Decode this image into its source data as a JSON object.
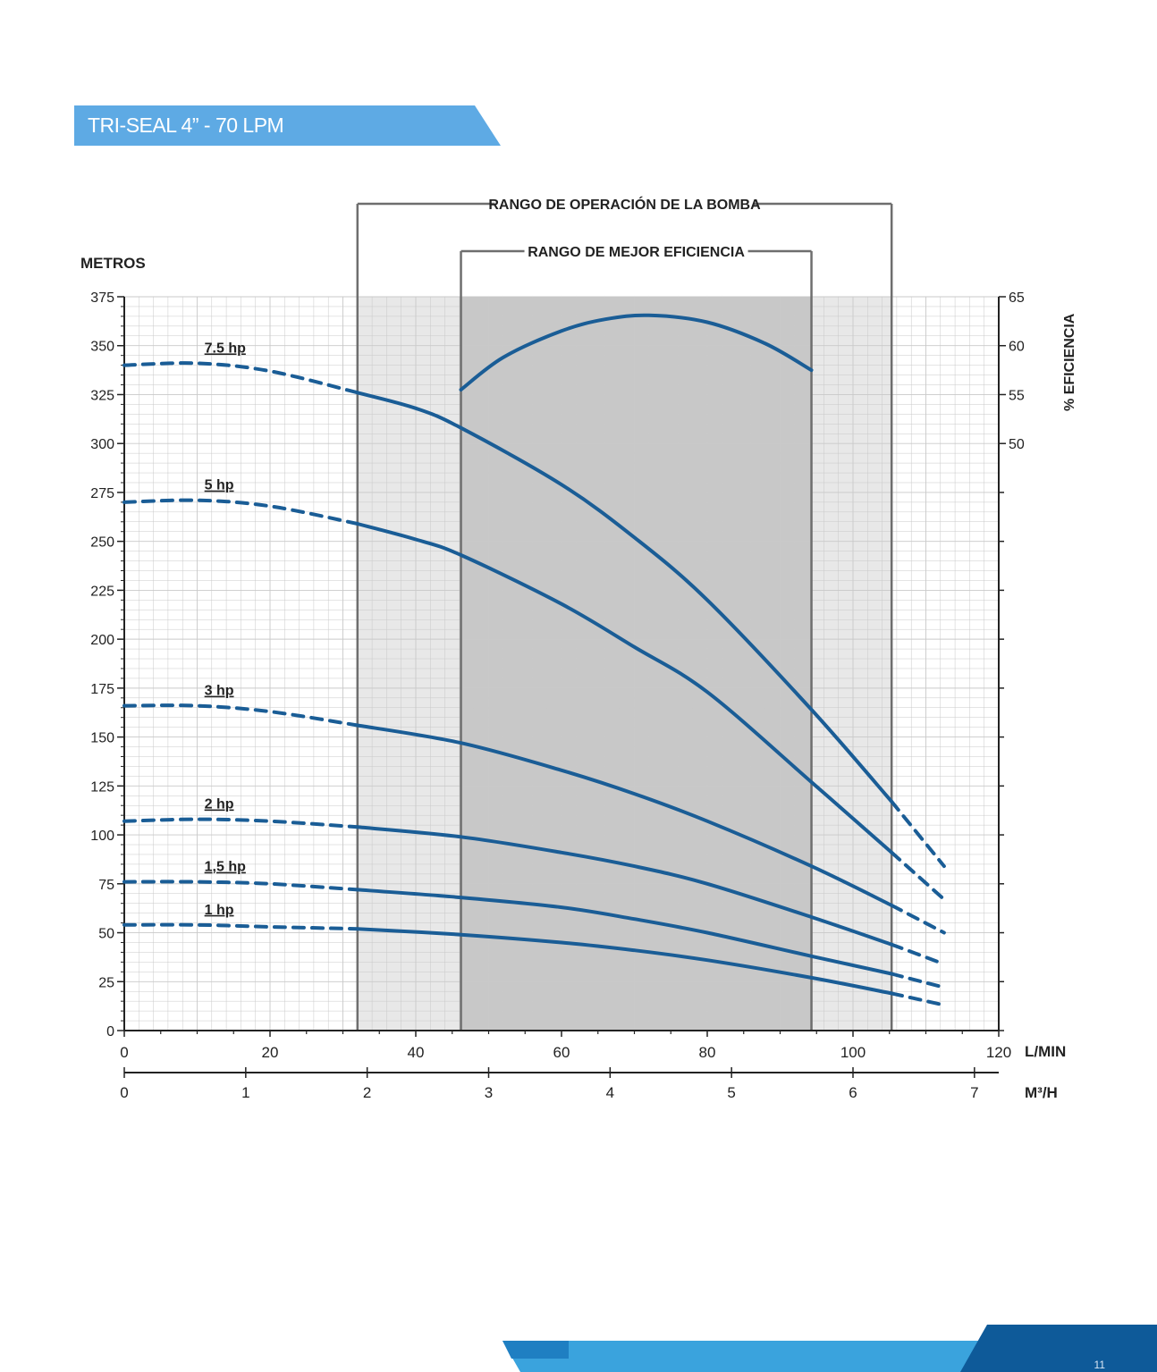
{
  "header": {
    "title": "TRI-SEAL 4” - 70 LPM",
    "accent_color": "#5eaae4"
  },
  "footer": {
    "page_number": "11",
    "color_dark": "#0e5a99",
    "color_light": "#3aa3dd"
  },
  "chart_data": {
    "type": "line",
    "title": "",
    "ylabel": "METROS",
    "y2label": "% EFICIENCIA",
    "xlabel": "L/MIN",
    "x2label": "M³/H",
    "xlim": [
      0,
      120
    ],
    "ylim": [
      0,
      375
    ],
    "yticks": [
      "0",
      "25",
      "50",
      "75",
      "100",
      "125",
      "150",
      "175",
      "200",
      "225",
      "250",
      "275",
      "300",
      "325",
      "350",
      "375"
    ],
    "xticks": [
      "0",
      "20",
      "40",
      "60",
      "80",
      "100",
      "120"
    ],
    "x2lim": [
      0,
      7.2
    ],
    "x2ticks": [
      "0",
      "1",
      "2",
      "3",
      "4",
      "5",
      "6",
      "7"
    ],
    "y2lim": [
      50,
      65
    ],
    "y2ticks": [
      "50",
      "55",
      "60",
      "65"
    ],
    "grid": true,
    "line_color": "#1a5d96",
    "ranges": [
      {
        "label": "RANGO DE OPERACIÓN DE LA BOMBA",
        "x_start": 32,
        "x_end": 105.3,
        "fill": "#e8e8e8"
      },
      {
        "label": "RANGO DE MEJOR EFICIENCIA",
        "x_start": 46.2,
        "x_end": 94.3,
        "fill": "#c8c8c8"
      }
    ],
    "series": [
      {
        "name": "7.5 hp",
        "label_x": 11,
        "dashed": [
          [
            0,
            340
          ],
          [
            10,
            341
          ],
          [
            20,
            337
          ],
          [
            32,
            326
          ]
        ],
        "solid": [
          [
            32,
            326
          ],
          [
            40,
            318
          ],
          [
            46.2,
            308
          ],
          [
            60,
            279
          ],
          [
            70,
            252
          ],
          [
            80,
            220
          ],
          [
            94.3,
            164
          ],
          [
            105.3,
            117
          ]
        ],
        "tail": [
          [
            105.3,
            117
          ],
          [
            112.5,
            84
          ]
        ]
      },
      {
        "name": "5 hp",
        "label_x": 11,
        "dashed": [
          [
            0,
            270
          ],
          [
            10,
            271
          ],
          [
            20,
            268
          ],
          [
            32,
            259
          ]
        ],
        "solid": [
          [
            32,
            259
          ],
          [
            40,
            251
          ],
          [
            46.2,
            243
          ],
          [
            60,
            218
          ],
          [
            70,
            196
          ],
          [
            80,
            173
          ],
          [
            94.3,
            127
          ],
          [
            105.3,
            91
          ]
        ],
        "tail": [
          [
            105.3,
            91
          ],
          [
            112.5,
            67
          ]
        ]
      },
      {
        "name": "3 hp",
        "label_x": 11,
        "dashed": [
          [
            0,
            166
          ],
          [
            10,
            166
          ],
          [
            20,
            163
          ],
          [
            32,
            156
          ]
        ],
        "solid": [
          [
            32,
            156
          ],
          [
            46.2,
            147
          ],
          [
            60,
            133
          ],
          [
            70,
            121
          ],
          [
            80,
            107
          ],
          [
            94.3,
            84
          ],
          [
            105.3,
            64
          ]
        ],
        "tail": [
          [
            105.3,
            64
          ],
          [
            112.5,
            50
          ]
        ]
      },
      {
        "name": "2 hp",
        "label_x": 11,
        "dashed": [
          [
            0,
            107
          ],
          [
            10,
            108
          ],
          [
            20,
            107
          ],
          [
            32,
            104
          ]
        ],
        "solid": [
          [
            32,
            104
          ],
          [
            46.2,
            99
          ],
          [
            60,
            91
          ],
          [
            70,
            84
          ],
          [
            80,
            75
          ],
          [
            94.3,
            58
          ],
          [
            105.3,
            44
          ]
        ],
        "tail": [
          [
            105.3,
            44
          ],
          [
            112.5,
            34
          ]
        ]
      },
      {
        "name": "1,5 hp",
        "label_x": 11,
        "dashed": [
          [
            0,
            76
          ],
          [
            10,
            76
          ],
          [
            20,
            75
          ],
          [
            32,
            72
          ]
        ],
        "solid": [
          [
            32,
            72
          ],
          [
            46.2,
            68
          ],
          [
            60,
            63
          ],
          [
            70,
            57
          ],
          [
            80,
            50
          ],
          [
            94.3,
            38
          ],
          [
            105.3,
            29
          ]
        ],
        "tail": [
          [
            105.3,
            29
          ],
          [
            112.5,
            22
          ]
        ]
      },
      {
        "name": "1 hp",
        "label_x": 11,
        "dashed": [
          [
            0,
            54
          ],
          [
            10,
            54
          ],
          [
            20,
            53
          ],
          [
            32,
            52
          ]
        ],
        "solid": [
          [
            32,
            52
          ],
          [
            46.2,
            49
          ],
          [
            60,
            45
          ],
          [
            70,
            41
          ],
          [
            80,
            36
          ],
          [
            94.3,
            27
          ],
          [
            105.3,
            19
          ]
        ],
        "tail": [
          [
            105.3,
            19
          ],
          [
            112.5,
            13
          ]
        ]
      },
      {
        "name": "Eficiencia",
        "axis": "y2",
        "solid": [
          [
            46.2,
            55.5
          ],
          [
            52,
            58.8
          ],
          [
            60,
            61.5
          ],
          [
            66,
            62.7
          ],
          [
            72,
            63.1
          ],
          [
            80,
            62.4
          ],
          [
            88,
            60.2
          ],
          [
            94.3,
            57.5
          ]
        ]
      }
    ]
  }
}
